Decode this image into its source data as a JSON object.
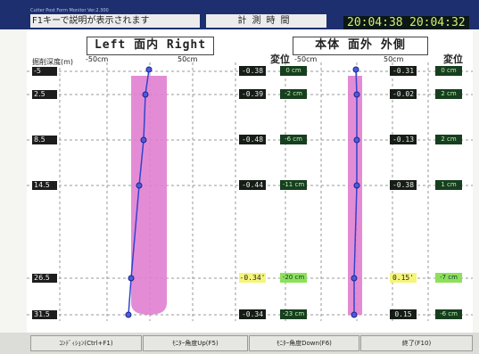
{
  "app": {
    "title": "Cutter Post Form Monitor Ver.2.300",
    "help_text": "F1キーで説明が表示されます",
    "mode": "計測時間",
    "time1": "20:04:38",
    "time2": "20:04:32"
  },
  "left_panel": {
    "title": "Left 面内 Right",
    "axis_left": "-50cm",
    "axis_right": "50cm",
    "depth_axis_label": "掘削深度(m)"
  },
  "right_panel": {
    "title": "本体 面外 外側",
    "axis_left": "-50cm",
    "axis_right": "50cm",
    "disp_label": "変位"
  },
  "middle": {
    "disp_label": "変位"
  },
  "depths": [
    "-5",
    "2.5",
    "8.5",
    "14.5",
    "26.5",
    "31.5"
  ],
  "left_values": [
    "-0.38",
    "-0.39",
    "-0.48",
    "-0.44",
    "-0.34'",
    "-0.34"
  ],
  "left_disps": [
    "0 cm",
    "-2 cm",
    "-6 cm",
    "-11 cm",
    "-20 cm",
    "-23 cm"
  ],
  "right_values": [
    "-0.31",
    "-0.02",
    "-0.13",
    "-0.38",
    "0.15'",
    "0.15"
  ],
  "right_disps": [
    "0 cm",
    "2 cm",
    "2 cm",
    "1 cm",
    "-7 cm",
    "-6 cm"
  ],
  "buttons": {
    "condition": "ｺﾝﾃﾞｨｼｮﾝ(Ctrl+F1)",
    "angle_up": "ﾓﾆﾀｰ角度Up(F5)",
    "angle_down": "ﾓﾆﾀｰ角度Down(F6)",
    "exit": "終了(F10)"
  },
  "colors": {
    "titlebar": "#1d2f6e",
    "band": "#e080d0",
    "line": "#3344cc",
    "highlight": "#f5f57a"
  }
}
